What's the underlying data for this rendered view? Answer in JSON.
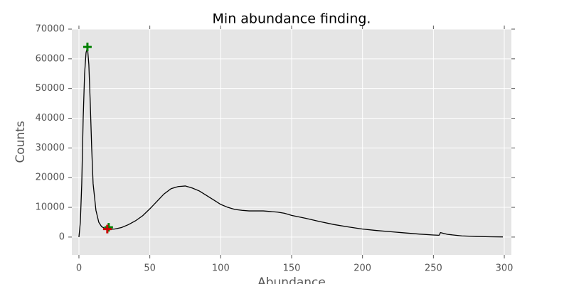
{
  "chart_data": {
    "type": "line",
    "title": "Min abundance finding.",
    "x_label": "Abundance",
    "y_label": "Counts",
    "x": [
      0,
      1,
      2,
      3,
      4,
      5,
      6,
      7,
      8,
      9,
      10,
      12,
      14,
      16,
      18,
      20,
      22,
      25,
      30,
      35,
      40,
      45,
      50,
      55,
      60,
      65,
      70,
      75,
      80,
      85,
      90,
      95,
      100,
      105,
      110,
      115,
      120,
      130,
      140,
      145,
      150,
      160,
      170,
      180,
      190,
      200,
      210,
      220,
      230,
      240,
      250,
      254,
      255,
      260,
      270,
      280,
      290,
      299
    ],
    "series": [
      {
        "color": "#000000",
        "values": [
          0,
          5000,
          18000,
          40000,
          55000,
          62000,
          64000,
          58000,
          45000,
          30000,
          18000,
          9000,
          5000,
          3500,
          3000,
          2700,
          2600,
          2700,
          3200,
          4200,
          5500,
          7200,
          9500,
          12000,
          14500,
          16300,
          17000,
          17200,
          16500,
          15500,
          14000,
          12500,
          11000,
          10000,
          9300,
          9000,
          8800,
          8800,
          8400,
          8000,
          7300,
          6300,
          5200,
          4200,
          3400,
          2700,
          2200,
          1800,
          1400,
          1000,
          700,
          600,
          1500,
          900,
          400,
          200,
          100,
          50
        ]
      }
    ],
    "markers": [
      {
        "x": 6,
        "y": 64000,
        "color": "#008000"
      },
      {
        "x": 21,
        "y": 3300,
        "color": "#008000"
      },
      {
        "x": 20,
        "y": 2700,
        "color": "#cc0000"
      }
    ],
    "xlim": [
      -5,
      305
    ],
    "ylim": [
      -6000,
      70000
    ],
    "xticks": [
      0,
      50,
      100,
      150,
      200,
      250,
      300
    ],
    "yticks": [
      0,
      10000,
      20000,
      30000,
      40000,
      50000,
      60000,
      70000
    ],
    "grid": true
  }
}
